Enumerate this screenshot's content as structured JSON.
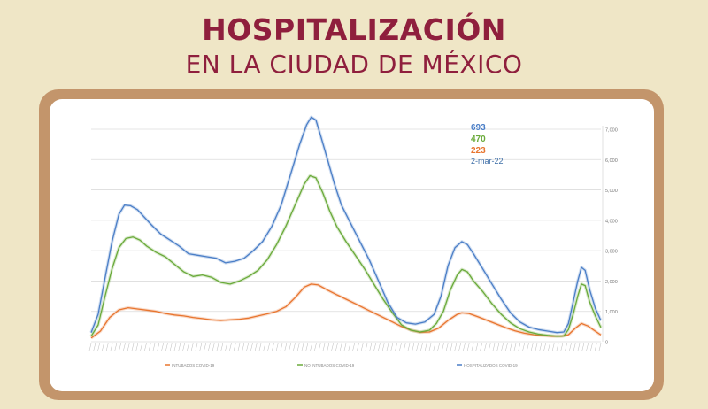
{
  "header": {
    "title": "HOSPITALIZACIÓN",
    "subtitle": "EN LA CIUDAD DE MÉXICO"
  },
  "colors": {
    "background": "#efe6c6",
    "title": "#8f1f3d",
    "frame": "#c3956b",
    "total": "#4a7ec7",
    "no_intubados": "#6aaa3a",
    "intubados": "#e8752f",
    "date": "#3f6fa8"
  },
  "chart_data": {
    "type": "line",
    "title": "",
    "xlabel": "",
    "ylabel": "",
    "ylim": [
      0,
      7000
    ],
    "y_ticks": [
      "0",
      "1,000",
      "2,000",
      "3,000",
      "4,000",
      "5,000",
      "6,000",
      "7,000"
    ],
    "y_tick_values": [
      0,
      1000,
      2000,
      3000,
      4000,
      5000,
      6000,
      7000
    ],
    "grid": true,
    "legend_position": "bottom",
    "annotations": {
      "total": "693",
      "no_intubados": "470",
      "intubados": "223",
      "date": "2-mar-22"
    },
    "x_start": "2020-04",
    "x_end": "2022-03-02",
    "series": [
      {
        "name": "INTUBADOS COVID-19",
        "key": "intubados",
        "points": [
          [
            0,
            120
          ],
          [
            20,
            350
          ],
          [
            40,
            800
          ],
          [
            60,
            1050
          ],
          [
            80,
            1120
          ],
          [
            100,
            1080
          ],
          [
            120,
            1040
          ],
          [
            140,
            1000
          ],
          [
            160,
            930
          ],
          [
            180,
            880
          ],
          [
            200,
            850
          ],
          [
            220,
            800
          ],
          [
            240,
            760
          ],
          [
            260,
            720
          ],
          [
            280,
            700
          ],
          [
            300,
            720
          ],
          [
            320,
            740
          ],
          [
            340,
            780
          ],
          [
            360,
            850
          ],
          [
            380,
            920
          ],
          [
            400,
            1000
          ],
          [
            420,
            1150
          ],
          [
            440,
            1450
          ],
          [
            460,
            1800
          ],
          [
            475,
            1900
          ],
          [
            490,
            1870
          ],
          [
            510,
            1700
          ],
          [
            530,
            1550
          ],
          [
            550,
            1400
          ],
          [
            570,
            1250
          ],
          [
            590,
            1100
          ],
          [
            610,
            950
          ],
          [
            630,
            800
          ],
          [
            650,
            650
          ],
          [
            670,
            500
          ],
          [
            690,
            380
          ],
          [
            710,
            310
          ],
          [
            730,
            320
          ],
          [
            750,
            450
          ],
          [
            770,
            700
          ],
          [
            790,
            900
          ],
          [
            800,
            950
          ],
          [
            815,
            930
          ],
          [
            835,
            820
          ],
          [
            855,
            700
          ],
          [
            875,
            580
          ],
          [
            895,
            460
          ],
          [
            915,
            360
          ],
          [
            935,
            280
          ],
          [
            955,
            230
          ],
          [
            975,
            200
          ],
          [
            995,
            180
          ],
          [
            1015,
            180
          ],
          [
            1030,
            230
          ],
          [
            1045,
            450
          ],
          [
            1058,
            600
          ],
          [
            1072,
            520
          ],
          [
            1085,
            380
          ],
          [
            1100,
            223
          ]
        ]
      },
      {
        "name": "NO INTUBADOS COVID-19",
        "key": "no_intubados",
        "points": [
          [
            0,
            180
          ],
          [
            15,
            550
          ],
          [
            30,
            1500
          ],
          [
            45,
            2400
          ],
          [
            60,
            3100
          ],
          [
            75,
            3400
          ],
          [
            90,
            3450
          ],
          [
            105,
            3350
          ],
          [
            120,
            3150
          ],
          [
            140,
            2950
          ],
          [
            160,
            2800
          ],
          [
            180,
            2550
          ],
          [
            200,
            2300
          ],
          [
            220,
            2150
          ],
          [
            240,
            2200
          ],
          [
            260,
            2120
          ],
          [
            280,
            1950
          ],
          [
            300,
            1900
          ],
          [
            320,
            2000
          ],
          [
            340,
            2150
          ],
          [
            360,
            2350
          ],
          [
            380,
            2700
          ],
          [
            400,
            3200
          ],
          [
            420,
            3800
          ],
          [
            440,
            4500
          ],
          [
            460,
            5200
          ],
          [
            472,
            5470
          ],
          [
            485,
            5400
          ],
          [
            500,
            4900
          ],
          [
            515,
            4300
          ],
          [
            530,
            3800
          ],
          [
            550,
            3300
          ],
          [
            570,
            2850
          ],
          [
            590,
            2400
          ],
          [
            610,
            1900
          ],
          [
            630,
            1400
          ],
          [
            650,
            950
          ],
          [
            670,
            550
          ],
          [
            690,
            380
          ],
          [
            710,
            320
          ],
          [
            730,
            380
          ],
          [
            745,
            600
          ],
          [
            760,
            1000
          ],
          [
            775,
            1700
          ],
          [
            790,
            2200
          ],
          [
            800,
            2380
          ],
          [
            812,
            2300
          ],
          [
            825,
            2000
          ],
          [
            845,
            1650
          ],
          [
            865,
            1250
          ],
          [
            885,
            900
          ],
          [
            905,
            620
          ],
          [
            925,
            430
          ],
          [
            945,
            320
          ],
          [
            965,
            250
          ],
          [
            985,
            210
          ],
          [
            1005,
            180
          ],
          [
            1020,
            190
          ],
          [
            1030,
            400
          ],
          [
            1040,
            900
          ],
          [
            1050,
            1500
          ],
          [
            1058,
            1900
          ],
          [
            1066,
            1850
          ],
          [
            1076,
            1300
          ],
          [
            1088,
            850
          ],
          [
            1100,
            470
          ]
        ]
      },
      {
        "name": "HOSPITALIZADOS COVID-19",
        "key": "total",
        "points": [
          [
            0,
            300
          ],
          [
            15,
            900
          ],
          [
            30,
            2100
          ],
          [
            45,
            3300
          ],
          [
            60,
            4200
          ],
          [
            72,
            4500
          ],
          [
            85,
            4480
          ],
          [
            100,
            4350
          ],
          [
            115,
            4100
          ],
          [
            130,
            3850
          ],
          [
            150,
            3550
          ],
          [
            170,
            3350
          ],
          [
            190,
            3150
          ],
          [
            210,
            2900
          ],
          [
            230,
            2850
          ],
          [
            250,
            2800
          ],
          [
            270,
            2750
          ],
          [
            290,
            2600
          ],
          [
            310,
            2650
          ],
          [
            330,
            2750
          ],
          [
            350,
            3000
          ],
          [
            370,
            3300
          ],
          [
            390,
            3800
          ],
          [
            410,
            4500
          ],
          [
            430,
            5500
          ],
          [
            450,
            6500
          ],
          [
            465,
            7150
          ],
          [
            475,
            7400
          ],
          [
            485,
            7300
          ],
          [
            495,
            6800
          ],
          [
            510,
            6000
          ],
          [
            525,
            5200
          ],
          [
            540,
            4500
          ],
          [
            560,
            3900
          ],
          [
            580,
            3300
          ],
          [
            600,
            2700
          ],
          [
            620,
            2000
          ],
          [
            640,
            1300
          ],
          [
            660,
            800
          ],
          [
            680,
            620
          ],
          [
            700,
            580
          ],
          [
            720,
            650
          ],
          [
            740,
            900
          ],
          [
            755,
            1500
          ],
          [
            770,
            2500
          ],
          [
            785,
            3100
          ],
          [
            800,
            3300
          ],
          [
            812,
            3200
          ],
          [
            825,
            2900
          ],
          [
            845,
            2400
          ],
          [
            865,
            1900
          ],
          [
            885,
            1400
          ],
          [
            905,
            950
          ],
          [
            925,
            650
          ],
          [
            945,
            480
          ],
          [
            965,
            400
          ],
          [
            985,
            350
          ],
          [
            1005,
            300
          ],
          [
            1020,
            320
          ],
          [
            1030,
            600
          ],
          [
            1040,
            1300
          ],
          [
            1050,
            2000
          ],
          [
            1058,
            2450
          ],
          [
            1066,
            2350
          ],
          [
            1076,
            1700
          ],
          [
            1088,
            1100
          ],
          [
            1100,
            693
          ]
        ]
      }
    ]
  }
}
